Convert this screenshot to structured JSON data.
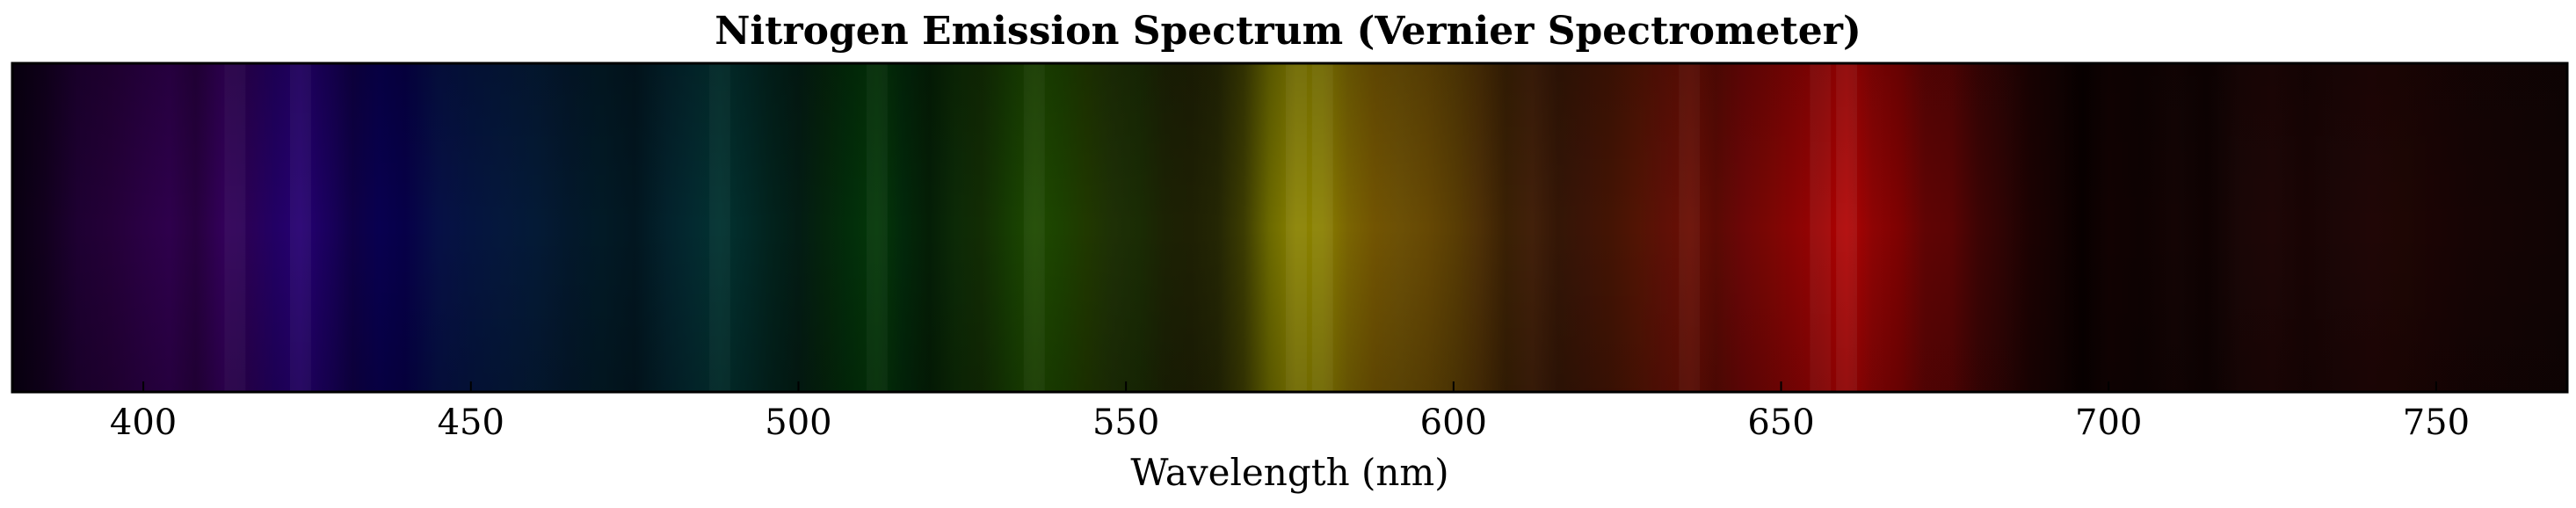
{
  "chart_data": {
    "type": "heatmap",
    "title": "Nitrogen Emission Spectrum (Vernier Spectrometer)",
    "xlabel": "Wavelength (nm)",
    "ylabel": "",
    "xlim": [
      380,
      770
    ],
    "xticks": [
      400,
      450,
      500,
      550,
      600,
      650,
      700,
      750
    ],
    "grid": false,
    "bands": [
      {
        "wavelength": 380,
        "color": "#080010"
      },
      {
        "wavelength": 385,
        "color": "#12001e"
      },
      {
        "wavelength": 390,
        "color": "#1e0032"
      },
      {
        "wavelength": 395,
        "color": "#240038"
      },
      {
        "wavelength": 400,
        "color": "#2a0044"
      },
      {
        "wavelength": 404,
        "color": "#2e004c"
      },
      {
        "wavelength": 408,
        "color": "#26003e"
      },
      {
        "wavelength": 412,
        "color": "#320058"
      },
      {
        "wavelength": 416,
        "color": "#2a0056"
      },
      {
        "wavelength": 420,
        "color": "#220064"
      },
      {
        "wavelength": 424,
        "color": "#260072"
      },
      {
        "wavelength": 428,
        "color": "#1a005e"
      },
      {
        "wavelength": 432,
        "color": "#0e0046"
      },
      {
        "wavelength": 436,
        "color": "#080050"
      },
      {
        "wavelength": 440,
        "color": "#060048"
      },
      {
        "wavelength": 445,
        "color": "#061046"
      },
      {
        "wavelength": 450,
        "color": "#051440"
      },
      {
        "wavelength": 455,
        "color": "#05183c"
      },
      {
        "wavelength": 460,
        "color": "#041a36"
      },
      {
        "wavelength": 465,
        "color": "#03182c"
      },
      {
        "wavelength": 470,
        "color": "#021a26"
      },
      {
        "wavelength": 475,
        "color": "#021620"
      },
      {
        "wavelength": 480,
        "color": "#03222c"
      },
      {
        "wavelength": 484,
        "color": "#032a30"
      },
      {
        "wavelength": 488,
        "color": "#023230"
      },
      {
        "wavelength": 492,
        "color": "#022a28"
      },
      {
        "wavelength": 496,
        "color": "#02221c"
      },
      {
        "wavelength": 500,
        "color": "#031c14"
      },
      {
        "wavelength": 504,
        "color": "#04240c"
      },
      {
        "wavelength": 508,
        "color": "#022e0a"
      },
      {
        "wavelength": 512,
        "color": "#043808"
      },
      {
        "wavelength": 516,
        "color": "#02280a"
      },
      {
        "wavelength": 520,
        "color": "#041e06"
      },
      {
        "wavelength": 524,
        "color": "#0c2a06"
      },
      {
        "wavelength": 528,
        "color": "#122c04"
      },
      {
        "wavelength": 532,
        "color": "#163c02"
      },
      {
        "wavelength": 536,
        "color": "#1e4a00"
      },
      {
        "wavelength": 540,
        "color": "#1c4200"
      },
      {
        "wavelength": 544,
        "color": "#203800"
      },
      {
        "wavelength": 548,
        "color": "#1e3006"
      },
      {
        "wavelength": 552,
        "color": "#1a2c04"
      },
      {
        "wavelength": 556,
        "color": "#1c2204"
      },
      {
        "wavelength": 560,
        "color": "#1e2004"
      },
      {
        "wavelength": 564,
        "color": "#242604"
      },
      {
        "wavelength": 568,
        "color": "#3c3c02"
      },
      {
        "wavelength": 572,
        "color": "#6c6a00"
      },
      {
        "wavelength": 576,
        "color": "#8a8200"
      },
      {
        "wavelength": 580,
        "color": "#8a8000"
      },
      {
        "wavelength": 584,
        "color": "#7a6402"
      },
      {
        "wavelength": 588,
        "color": "#725402"
      },
      {
        "wavelength": 592,
        "color": "#6c5006"
      },
      {
        "wavelength": 596,
        "color": "#664804"
      },
      {
        "wavelength": 600,
        "color": "#5a3e04"
      },
      {
        "wavelength": 604,
        "color": "#4e3006"
      },
      {
        "wavelength": 608,
        "color": "#3a2004"
      },
      {
        "wavelength": 612,
        "color": "#42200a"
      },
      {
        "wavelength": 616,
        "color": "#341606"
      },
      {
        "wavelength": 620,
        "color": "#3c1406"
      },
      {
        "wavelength": 624,
        "color": "#441404"
      },
      {
        "wavelength": 628,
        "color": "#521404"
      },
      {
        "wavelength": 632,
        "color": "#5e1006"
      },
      {
        "wavelength": 636,
        "color": "#6a0e04"
      },
      {
        "wavelength": 640,
        "color": "#5a0a04"
      },
      {
        "wavelength": 644,
        "color": "#6c0606"
      },
      {
        "wavelength": 648,
        "color": "#7a0604"
      },
      {
        "wavelength": 652,
        "color": "#8a0404"
      },
      {
        "wavelength": 656,
        "color": "#9a0202"
      },
      {
        "wavelength": 660,
        "color": "#b00202"
      },
      {
        "wavelength": 664,
        "color": "#8e0404"
      },
      {
        "wavelength": 668,
        "color": "#7e0202"
      },
      {
        "wavelength": 672,
        "color": "#600404"
      },
      {
        "wavelength": 676,
        "color": "#5a0404"
      },
      {
        "wavelength": 680,
        "color": "#3e0404"
      },
      {
        "wavelength": 684,
        "color": "#2e0404"
      },
      {
        "wavelength": 688,
        "color": "#1c0202"
      },
      {
        "wavelength": 692,
        "color": "#140202"
      },
      {
        "wavelength": 696,
        "color": "#080000"
      },
      {
        "wavelength": 700,
        "color": "#120202"
      },
      {
        "wavelength": 705,
        "color": "#0e0202"
      },
      {
        "wavelength": 710,
        "color": "#140404"
      },
      {
        "wavelength": 715,
        "color": "#0e0202"
      },
      {
        "wavelength": 720,
        "color": "#1a0606"
      },
      {
        "wavelength": 725,
        "color": "#1e0606"
      },
      {
        "wavelength": 730,
        "color": "#180404"
      },
      {
        "wavelength": 735,
        "color": "#1c0606"
      },
      {
        "wavelength": 740,
        "color": "#200606"
      },
      {
        "wavelength": 745,
        "color": "#1e0604"
      },
      {
        "wavelength": 750,
        "color": "#1a0404"
      },
      {
        "wavelength": 755,
        "color": "#160404"
      },
      {
        "wavelength": 760,
        "color": "#140404"
      },
      {
        "wavelength": 765,
        "color": "#120404"
      },
      {
        "wavelength": 770,
        "color": "#100404"
      }
    ],
    "line_peaks": [
      {
        "wavelength": 414,
        "strength": 0.35
      },
      {
        "wavelength": 424,
        "strength": 0.4
      },
      {
        "wavelength": 488,
        "strength": 0.3
      },
      {
        "wavelength": 512,
        "strength": 0.35
      },
      {
        "wavelength": 536,
        "strength": 0.4
      },
      {
        "wavelength": 576,
        "strength": 0.5
      },
      {
        "wavelength": 580,
        "strength": 0.5
      },
      {
        "wavelength": 636,
        "strength": 0.35
      },
      {
        "wavelength": 656,
        "strength": 0.5
      },
      {
        "wavelength": 660,
        "strength": 0.6
      }
    ]
  }
}
